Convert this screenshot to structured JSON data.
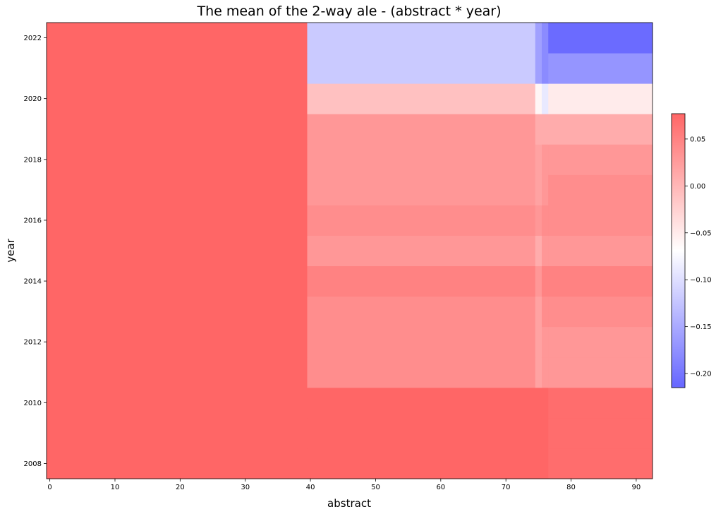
{
  "chart_data": {
    "type": "heatmap",
    "title": "The mean of the 2-way ale - (abstract * year)",
    "xlabel": "abstract",
    "ylabel": "year",
    "xlim": [
      -0.5,
      92.5
    ],
    "ylim": [
      2007.5,
      2022.5
    ],
    "x_ticks": [
      0,
      10,
      20,
      30,
      40,
      50,
      60,
      70,
      80,
      90
    ],
    "y_ticks": [
      2008,
      2010,
      2012,
      2014,
      2016,
      2018,
      2020,
      2022
    ],
    "x_edges": [
      -0.5,
      39.5,
      74.5,
      75.5,
      76.5,
      92.5
    ],
    "y_edges": [
      2007.5,
      2008.5,
      2009.5,
      2010.5,
      2011.5,
      2012.5,
      2013.5,
      2014.5,
      2015.5,
      2016.5,
      2017.5,
      2018.5,
      2019.5,
      2020.5,
      2021.5,
      2022.5
    ],
    "values": [
      [
        0.09,
        0.09,
        0.08,
        0.09,
        0.07
      ],
      [
        0.09,
        0.09,
        0.08,
        0.09,
        0.07
      ],
      [
        0.09,
        0.09,
        0.08,
        0.09,
        0.07
      ],
      [
        0.09,
        0.04,
        0.02,
        0.03,
        0.03
      ],
      [
        0.09,
        0.04,
        0.02,
        0.03,
        0.03
      ],
      [
        0.09,
        0.04,
        0.02,
        0.04,
        0.04
      ],
      [
        0.09,
        0.05,
        0.03,
        0.05,
        0.05
      ],
      [
        0.09,
        0.03,
        0.01,
        0.03,
        0.03
      ],
      [
        0.09,
        0.04,
        0.03,
        0.04,
        0.04
      ],
      [
        0.09,
        0.03,
        0.02,
        0.03,
        0.04
      ],
      [
        0.09,
        0.03,
        0.02,
        0.03,
        0.03
      ],
      [
        0.09,
        0.03,
        0.01,
        0.01,
        0.01
      ],
      [
        0.09,
        -0.01,
        -0.06,
        -0.09,
        -0.05
      ],
      [
        0.09,
        -0.12,
        -0.16,
        -0.18,
        -0.17
      ],
      [
        0.09,
        -0.12,
        -0.16,
        -0.18,
        -0.21
      ]
    ],
    "colorbar": {
      "min": -0.215,
      "max": 0.077,
      "ticks": [
        0.05,
        0.0,
        -0.05,
        -0.1,
        -0.15,
        -0.2
      ],
      "tick_labels": [
        "0.05",
        "0.00",
        "−0.05",
        "−0.10",
        "−0.15",
        "−0.20"
      ],
      "colors": [
        "#6666ff",
        "#ffffff",
        "#ff6666"
      ]
    }
  }
}
